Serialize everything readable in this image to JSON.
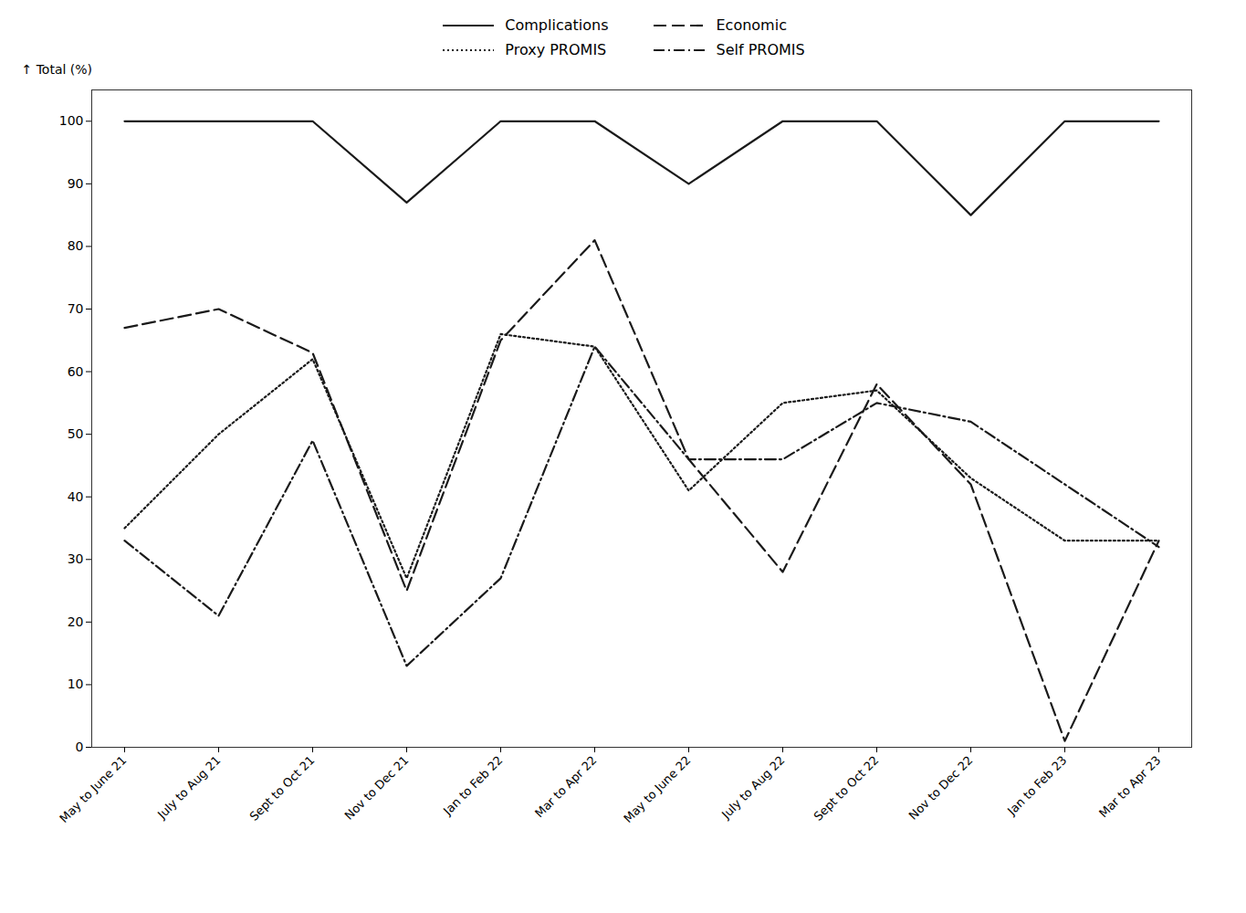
{
  "chart_data": {
    "type": "line",
    "ylabel": "Total (%)",
    "categories": [
      "May to June 21",
      "July to Aug 21",
      "Sept to Oct 21",
      "Nov to Dec 21",
      "Jan to Feb 22",
      "Mar to Apr 22",
      "May to June 22",
      "July to Aug 22",
      "Sept to Oct 22",
      "Nov to Dec 22",
      "Jan to Feb 23",
      "Mar to Apr 23"
    ],
    "series": [
      {
        "name": "Complications",
        "color": "#1a1a1a",
        "line_style": "solid",
        "values": [
          100,
          100,
          100,
          87,
          100,
          100,
          90,
          100,
          100,
          85,
          100,
          100
        ]
      },
      {
        "name": "Economic",
        "color": "#1a1a1a",
        "line_style": "dashed",
        "values": [
          67,
          70,
          63,
          25,
          65,
          81,
          46,
          28,
          58,
          42,
          1,
          33
        ]
      },
      {
        "name": "Proxy PROMIS",
        "color": "#1a1a1a",
        "line_style": "dotted",
        "values": [
          35,
          50,
          62,
          27,
          66,
          64,
          41,
          55,
          57,
          43,
          33,
          33
        ]
      },
      {
        "name": "Self PROMIS",
        "color": "#1a1a1a",
        "line_style": "dashdot",
        "values": [
          33,
          21,
          49,
          13,
          27,
          64,
          46,
          46,
          55,
          52,
          42,
          32
        ]
      }
    ],
    "ylim": [
      0,
      105
    ],
    "yticks": [
      0,
      10,
      20,
      30,
      40,
      50,
      60,
      70,
      80,
      90,
      100
    ],
    "legend": "top",
    "grid": false
  }
}
